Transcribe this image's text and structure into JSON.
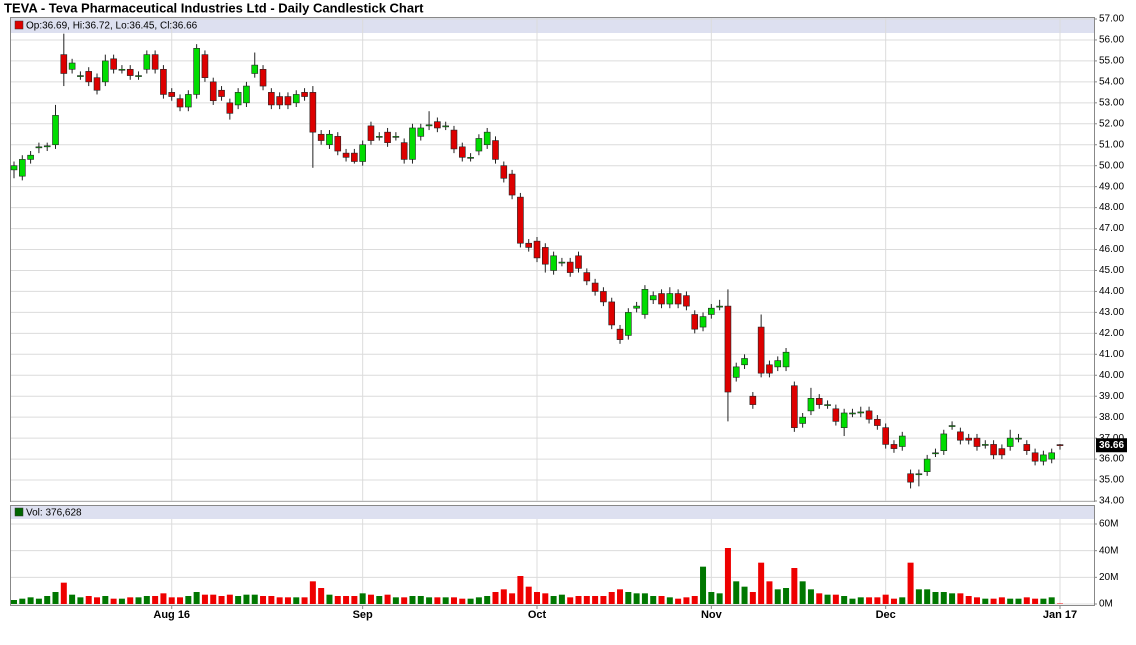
{
  "chart_data": [
    {
      "type": "candlestick",
      "title": "TEVA - Teva Pharmaceutical Industries Ltd - Daily Candlestick Chart",
      "legend_label": "Op:36.69, Hi:36.72, Lo:36.45, Cl:36.66",
      "categories": [
        null,
        null,
        null,
        null,
        null,
        null,
        null,
        null,
        null,
        null,
        null,
        null,
        null,
        null,
        null,
        null,
        null,
        null,
        null,
        "Aug 16",
        null,
        null,
        null,
        null,
        null,
        null,
        null,
        null,
        null,
        null,
        null,
        null,
        null,
        null,
        null,
        null,
        null,
        null,
        null,
        null,
        null,
        null,
        "Sep",
        null,
        null,
        null,
        null,
        null,
        null,
        null,
        null,
        null,
        null,
        null,
        null,
        null,
        null,
        null,
        null,
        null,
        null,
        null,
        null,
        "Oct",
        null,
        null,
        null,
        null,
        null,
        null,
        null,
        null,
        null,
        null,
        null,
        null,
        null,
        null,
        null,
        null,
        null,
        null,
        null,
        null,
        "Nov",
        null,
        null,
        null,
        null,
        null,
        null,
        null,
        null,
        null,
        null,
        null,
        null,
        null,
        null,
        null,
        null,
        null,
        null,
        null,
        null,
        "Dec",
        null,
        null,
        null,
        null,
        null,
        null,
        null,
        null,
        null,
        null,
        null,
        null,
        null,
        null,
        null,
        null,
        null,
        null,
        null,
        null,
        "Jan 17"
      ],
      "open": [
        49.8,
        49.5,
        50.3,
        50.9,
        50.9,
        51.0,
        55.3,
        54.6,
        54.3,
        54.5,
        54.2,
        54.0,
        55.1,
        54.6,
        54.6,
        54.3,
        54.6,
        55.3,
        54.6,
        53.5,
        53.2,
        52.8,
        53.4,
        55.3,
        54.0,
        53.6,
        53.0,
        52.9,
        53.0,
        54.4,
        54.6,
        53.5,
        53.3,
        53.3,
        53.0,
        53.5,
        53.5,
        51.5,
        51.0,
        51.4,
        50.6,
        50.6,
        50.2,
        51.9,
        51.4,
        51.6,
        51.4,
        51.1,
        50.3,
        51.4,
        51.9,
        52.1,
        51.9,
        51.7,
        50.9,
        50.4,
        50.7,
        51.0,
        51.2,
        50.0,
        49.6,
        48.5,
        46.3,
        46.4,
        46.1,
        45.0,
        45.4,
        45.4,
        45.7,
        44.9,
        44.4,
        44.0,
        43.5,
        42.2,
        41.9,
        43.2,
        42.9,
        43.6,
        43.9,
        43.4,
        43.9,
        43.8,
        42.9,
        42.3,
        42.9,
        43.3,
        43.3,
        39.9,
        40.5,
        39.0,
        42.3,
        40.5,
        40.4,
        40.4,
        39.5,
        37.7,
        38.3,
        38.9,
        38.6,
        38.4,
        37.5,
        38.2,
        38.2,
        38.3,
        37.9,
        37.5,
        36.7,
        36.6,
        35.3,
        35.3,
        35.4,
        36.3,
        36.4,
        37.6,
        37.3,
        37.0,
        37.0,
        36.7,
        36.7,
        36.5,
        36.6,
        37.0,
        36.7,
        36.3,
        35.9,
        36.0,
        36.69
      ],
      "high": [
        50.2,
        50.5,
        50.7,
        51.1,
        51.1,
        52.9,
        56.3,
        55.1,
        54.5,
        54.7,
        54.4,
        55.3,
        55.3,
        54.8,
        54.8,
        54.5,
        55.5,
        55.5,
        54.8,
        53.7,
        53.4,
        53.6,
        55.8,
        55.5,
        54.2,
        53.8,
        53.2,
        53.7,
        54.0,
        55.4,
        54.8,
        53.7,
        53.5,
        53.5,
        53.6,
        53.7,
        53.8,
        51.7,
        51.7,
        51.6,
        50.8,
        50.8,
        51.2,
        52.1,
        51.6,
        51.8,
        51.6,
        51.3,
        52.0,
        52.0,
        52.6,
        52.3,
        52.1,
        51.9,
        51.1,
        50.6,
        51.5,
        51.8,
        51.4,
        50.2,
        49.8,
        48.7,
        46.5,
        46.6,
        46.3,
        45.9,
        45.6,
        45.6,
        45.9,
        45.1,
        44.6,
        44.2,
        43.7,
        42.4,
        43.2,
        43.5,
        44.3,
        44.0,
        44.1,
        44.2,
        44.1,
        44.0,
        43.1,
        43.0,
        43.4,
        43.6,
        44.1,
        40.6,
        41.0,
        39.2,
        42.9,
        40.7,
        40.9,
        41.3,
        39.7,
        38.2,
        39.4,
        39.1,
        38.8,
        38.6,
        38.4,
        38.4,
        38.5,
        38.5,
        38.1,
        37.7,
        36.9,
        37.3,
        35.5,
        35.5,
        36.2,
        36.5,
        37.4,
        37.8,
        37.5,
        37.2,
        37.2,
        36.9,
        36.9,
        36.7,
        37.4,
        37.2,
        36.9,
        36.5,
        36.4,
        36.5,
        36.72
      ],
      "low": [
        49.4,
        49.3,
        50.1,
        50.6,
        50.7,
        50.8,
        53.8,
        54.4,
        54.1,
        53.8,
        53.4,
        53.8,
        54.4,
        54.4,
        54.1,
        54.1,
        54.4,
        54.4,
        53.2,
        53.1,
        52.6,
        52.6,
        53.2,
        54.0,
        52.9,
        53.1,
        52.2,
        52.7,
        52.8,
        54.2,
        53.6,
        52.7,
        52.7,
        52.7,
        52.8,
        53.1,
        49.9,
        51.0,
        50.8,
        50.5,
        50.2,
        50.1,
        50.0,
        51.0,
        51.2,
        50.9,
        51.2,
        50.1,
        50.1,
        51.2,
        51.7,
        51.6,
        51.7,
        50.6,
        50.2,
        50.2,
        50.5,
        50.8,
        50.1,
        49.2,
        48.4,
        46.1,
        45.9,
        45.4,
        44.9,
        44.8,
        45.2,
        44.7,
        44.9,
        44.3,
        43.8,
        43.3,
        42.2,
        41.5,
        41.7,
        43.0,
        42.7,
        43.4,
        43.2,
        43.2,
        43.2,
        43.1,
        42.0,
        42.1,
        42.7,
        43.1,
        37.8,
        39.7,
        40.3,
        38.4,
        39.9,
        39.9,
        40.2,
        40.2,
        37.3,
        37.5,
        38.1,
        38.4,
        38.4,
        37.6,
        37.1,
        38.0,
        38.0,
        37.7,
        37.4,
        36.5,
        36.3,
        36.4,
        34.6,
        34.7,
        35.2,
        36.1,
        36.2,
        37.4,
        36.7,
        36.7,
        36.4,
        36.5,
        36.0,
        36.0,
        36.4,
        36.8,
        36.2,
        35.7,
        35.7,
        35.8,
        36.45
      ],
      "close": [
        50.0,
        50.3,
        50.5,
        50.9,
        50.95,
        52.4,
        54.4,
        54.9,
        54.3,
        54.0,
        53.6,
        55.0,
        54.6,
        54.6,
        54.3,
        54.3,
        55.3,
        54.6,
        53.4,
        53.3,
        52.8,
        53.4,
        55.6,
        54.2,
        53.1,
        53.3,
        52.5,
        53.5,
        53.8,
        54.8,
        53.8,
        52.9,
        52.9,
        52.9,
        53.4,
        53.3,
        51.6,
        51.2,
        51.5,
        50.7,
        50.4,
        50.2,
        51.0,
        51.2,
        51.4,
        51.1,
        51.4,
        50.3,
        51.8,
        51.8,
        51.95,
        51.8,
        51.9,
        50.8,
        50.4,
        50.4,
        51.3,
        51.6,
        50.3,
        49.4,
        48.6,
        46.3,
        46.1,
        45.6,
        45.3,
        45.7,
        45.4,
        44.9,
        45.1,
        44.5,
        44.0,
        43.5,
        42.4,
        41.7,
        43.0,
        43.3,
        44.1,
        43.8,
        43.4,
        43.9,
        43.4,
        43.3,
        42.2,
        42.8,
        43.2,
        43.3,
        39.2,
        40.4,
        40.8,
        38.6,
        40.1,
        40.1,
        40.7,
        41.1,
        37.5,
        38.0,
        38.9,
        38.6,
        38.6,
        37.8,
        38.2,
        38.2,
        38.25,
        37.9,
        37.6,
        36.7,
        36.5,
        37.1,
        34.9,
        35.3,
        36.0,
        36.3,
        37.2,
        37.6,
        36.9,
        36.9,
        36.6,
        36.7,
        36.2,
        36.2,
        37.0,
        37.0,
        36.4,
        35.9,
        36.2,
        36.3,
        36.66
      ],
      "up_color": "#00dd00",
      "down_color": "#dd0000",
      "legend_color": "#dd0000",
      "ylim": [
        34,
        57
      ],
      "yticks": [
        {
          "value": 34,
          "label": "34.00"
        },
        {
          "value": 35,
          "label": "35.00"
        },
        {
          "value": 36,
          "label": "36.00"
        },
        {
          "value": 37,
          "label": "37.00"
        },
        {
          "value": 38,
          "label": "38.00"
        },
        {
          "value": 39,
          "label": "39.00"
        },
        {
          "value": 40,
          "label": "40.00"
        },
        {
          "value": 41,
          "label": "41.00"
        },
        {
          "value": 42,
          "label": "42.00"
        },
        {
          "value": 43,
          "label": "43.00"
        },
        {
          "value": 44,
          "label": "44.00"
        },
        {
          "value": 45,
          "label": "45.00"
        },
        {
          "value": 46,
          "label": "46.00"
        },
        {
          "value": 47,
          "label": "47.00"
        },
        {
          "value": 48,
          "label": "48.00"
        },
        {
          "value": 49,
          "label": "49.00"
        },
        {
          "value": 50,
          "label": "50.00"
        },
        {
          "value": 51,
          "label": "51.00"
        },
        {
          "value": 52,
          "label": "52.00"
        },
        {
          "value": 53,
          "label": "53.00"
        },
        {
          "value": 54,
          "label": "54.00"
        },
        {
          "value": 55,
          "label": "55.00"
        },
        {
          "value": 56,
          "label": "56.00"
        },
        {
          "value": 57,
          "label": "57.00"
        }
      ],
      "grid": true
    },
    {
      "type": "bar",
      "legend_label": "Vol: 376,628",
      "values": [
        3,
        4,
        5,
        4,
        6,
        9,
        16,
        7,
        5,
        6,
        5,
        6,
        4,
        4,
        5,
        5,
        6,
        6,
        8,
        5,
        5,
        6,
        9,
        7,
        7,
        6,
        7,
        6,
        7,
        7,
        6,
        6,
        5,
        5,
        5,
        5,
        17,
        12,
        7,
        6,
        6,
        6,
        8,
        7,
        6,
        7,
        5,
        5,
        6,
        6,
        5,
        5,
        5,
        5,
        4,
        4,
        5,
        6,
        9,
        11,
        8,
        21,
        13,
        9,
        8,
        6,
        7,
        5,
        6,
        6,
        6,
        6,
        9,
        11,
        9,
        8,
        8,
        6,
        6,
        5,
        4,
        5,
        6,
        28,
        9,
        8,
        42,
        17,
        13,
        9,
        31,
        17,
        11,
        12,
        27,
        17,
        11,
        8,
        7,
        7,
        6,
        4,
        5,
        5,
        5,
        7,
        4,
        5,
        31,
        11,
        11,
        9,
        9,
        8,
        8,
        6,
        5,
        4,
        4,
        5,
        4,
        4,
        5,
        4,
        4,
        5,
        0.376628
      ],
      "up_color": "#007700",
      "down_color": "#ee0000",
      "legend_color": "#006600",
      "ylim": [
        0,
        63
      ],
      "yticks": [
        {
          "value": 0,
          "label": "0M"
        },
        {
          "value": 20,
          "label": "20M"
        },
        {
          "value": 40,
          "label": "40M"
        },
        {
          "value": 60,
          "label": "60M"
        }
      ],
      "grid": true
    }
  ]
}
